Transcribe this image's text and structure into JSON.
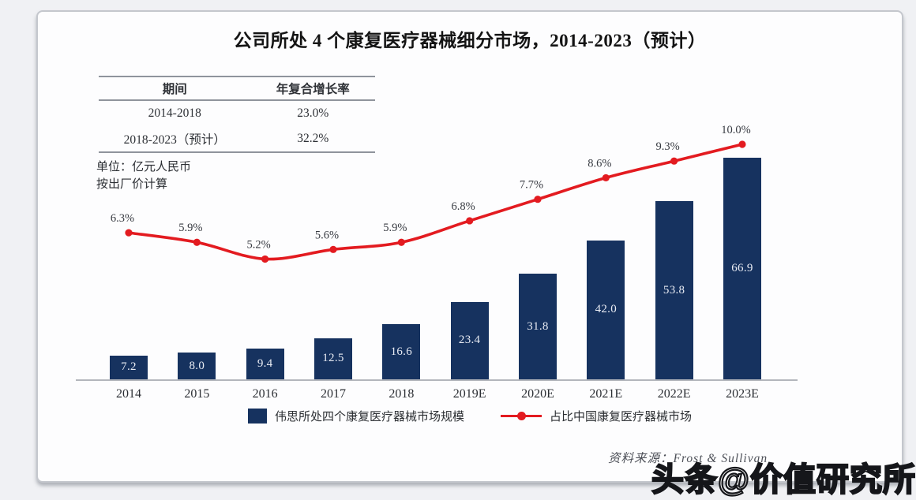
{
  "card": {
    "title": "公司所处 4 个康复医疗器械细分市场，2014-2023（预计）",
    "table": {
      "headers": [
        "期间",
        "年复合增长率"
      ],
      "rows": [
        [
          "2014-2018",
          "23.0%"
        ],
        [
          "2018-2023（预计）",
          "32.2%"
        ]
      ]
    },
    "unit_note_line1": "单位：亿元人民币",
    "unit_note_line2": "按出厂价计算",
    "legend": [
      {
        "type": "bar",
        "label": "伟思所处四个康复医疗器械市场规模",
        "color": "#16325f"
      },
      {
        "type": "line",
        "label": "占比中国康复医疗器械市场",
        "color": "#e31b20"
      }
    ],
    "source": "资料来源：Frost & Sullivan"
  },
  "watermark": "头条@价值研究所",
  "chart_data": {
    "type": "bar+line",
    "title": "公司所处 4 个康复医疗器械细分市场，2014-2023（预计）",
    "categories": [
      "2014",
      "2015",
      "2016",
      "2017",
      "2018",
      "2019E",
      "2020E",
      "2021E",
      "2022E",
      "2023E"
    ],
    "series": [
      {
        "name": "伟思所处四个康复医疗器械市场规模",
        "type": "bar",
        "unit": "亿元人民币（按出厂价计算）",
        "color": "#16325f",
        "values": [
          7.2,
          8.0,
          9.4,
          12.5,
          16.6,
          23.4,
          31.8,
          42.0,
          53.8,
          66.9
        ]
      },
      {
        "name": "占比中国康复医疗器械市场",
        "type": "line",
        "unit": "%",
        "color": "#e31b20",
        "values": [
          6.3,
          5.9,
          5.2,
          5.6,
          5.9,
          6.8,
          7.7,
          8.6,
          9.3,
          10.0
        ]
      }
    ],
    "cagr_table": {
      "headers": [
        "期间",
        "年复合增长率"
      ],
      "rows": [
        [
          "2014-2018",
          "23.0%"
        ],
        [
          "2018-2023（预计）",
          "32.2%"
        ]
      ]
    },
    "legend_position": "bottom",
    "grid": false,
    "bar_axis_range": [
      0,
      70
    ],
    "line_axis_range": [
      0,
      10.5
    ]
  }
}
